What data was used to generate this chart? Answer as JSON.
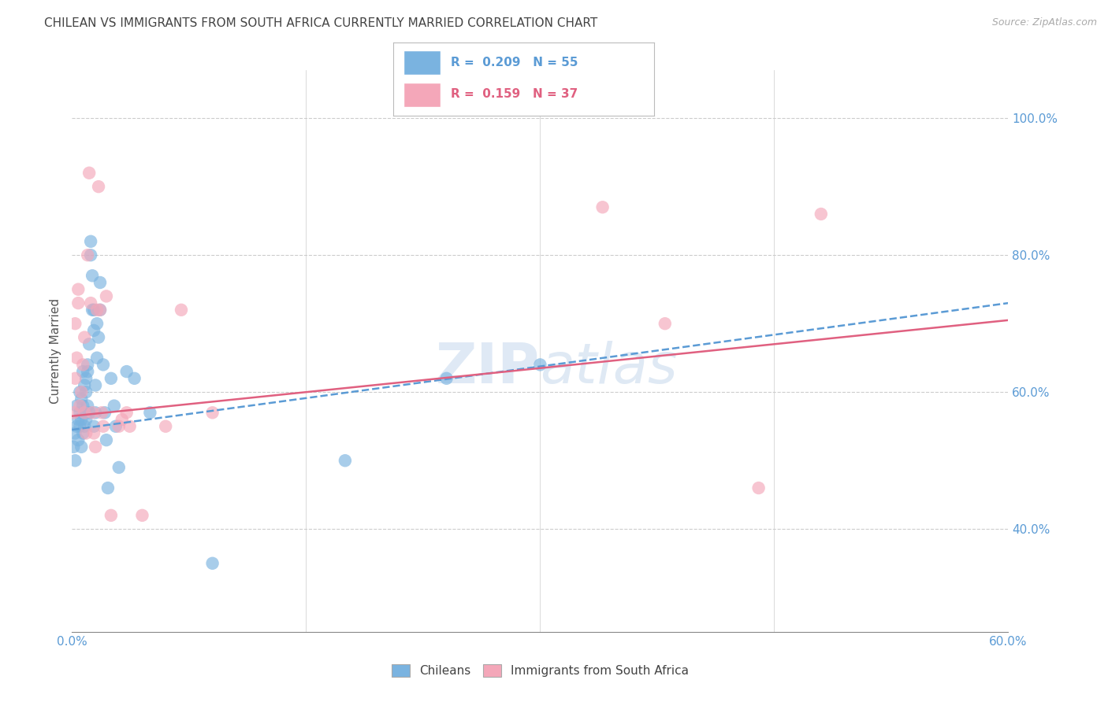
{
  "title": "CHILEAN VS IMMIGRANTS FROM SOUTH AFRICA CURRENTLY MARRIED CORRELATION CHART",
  "source": "Source: ZipAtlas.com",
  "ylabel": "Currently Married",
  "watermark": "ZIPAtlas",
  "chilean_color": "#7ab3e0",
  "immigrant_color": "#f4a7b9",
  "chilean_line_color": "#5b9bd5",
  "immigrant_line_color": "#e06080",
  "background_color": "#ffffff",
  "grid_color": "#cccccc",
  "axis_color": "#888888",
  "title_color": "#444444",
  "right_label_color": "#5b9bd5",
  "xlim": [
    0.0,
    0.6
  ],
  "ylim": [
    0.25,
    1.07
  ],
  "chilean_scatter": [
    [
      0.001,
      0.52
    ],
    [
      0.002,
      0.54
    ],
    [
      0.002,
      0.5
    ],
    [
      0.003,
      0.55
    ],
    [
      0.003,
      0.58
    ],
    [
      0.004,
      0.56
    ],
    [
      0.004,
      0.53
    ],
    [
      0.005,
      0.57
    ],
    [
      0.005,
      0.6
    ],
    [
      0.005,
      0.55
    ],
    [
      0.006,
      0.59
    ],
    [
      0.006,
      0.56
    ],
    [
      0.006,
      0.52
    ],
    [
      0.007,
      0.54
    ],
    [
      0.007,
      0.58
    ],
    [
      0.007,
      0.63
    ],
    [
      0.008,
      0.61
    ],
    [
      0.008,
      0.57
    ],
    [
      0.008,
      0.55
    ],
    [
      0.009,
      0.62
    ],
    [
      0.009,
      0.6
    ],
    [
      0.009,
      0.56
    ],
    [
      0.01,
      0.63
    ],
    [
      0.01,
      0.58
    ],
    [
      0.01,
      0.64
    ],
    [
      0.011,
      0.67
    ],
    [
      0.011,
      0.57
    ],
    [
      0.012,
      0.82
    ],
    [
      0.012,
      0.8
    ],
    [
      0.013,
      0.77
    ],
    [
      0.013,
      0.72
    ],
    [
      0.014,
      0.69
    ],
    [
      0.014,
      0.72
    ],
    [
      0.014,
      0.55
    ],
    [
      0.015,
      0.57
    ],
    [
      0.015,
      0.61
    ],
    [
      0.016,
      0.65
    ],
    [
      0.016,
      0.7
    ],
    [
      0.017,
      0.68
    ],
    [
      0.018,
      0.72
    ],
    [
      0.018,
      0.76
    ],
    [
      0.02,
      0.64
    ],
    [
      0.021,
      0.57
    ],
    [
      0.022,
      0.53
    ],
    [
      0.023,
      0.46
    ],
    [
      0.025,
      0.62
    ],
    [
      0.027,
      0.58
    ],
    [
      0.028,
      0.55
    ],
    [
      0.03,
      0.49
    ],
    [
      0.035,
      0.63
    ],
    [
      0.04,
      0.62
    ],
    [
      0.05,
      0.57
    ],
    [
      0.09,
      0.35
    ],
    [
      0.175,
      0.5
    ],
    [
      0.24,
      0.62
    ],
    [
      0.3,
      0.64
    ]
  ],
  "immigrant_scatter": [
    [
      0.001,
      0.57
    ],
    [
      0.002,
      0.7
    ],
    [
      0.002,
      0.62
    ],
    [
      0.003,
      0.65
    ],
    [
      0.004,
      0.73
    ],
    [
      0.004,
      0.75
    ],
    [
      0.005,
      0.58
    ],
    [
      0.006,
      0.6
    ],
    [
      0.007,
      0.64
    ],
    [
      0.008,
      0.68
    ],
    [
      0.008,
      0.57
    ],
    [
      0.009,
      0.54
    ],
    [
      0.01,
      0.8
    ],
    [
      0.011,
      0.92
    ],
    [
      0.012,
      0.73
    ],
    [
      0.013,
      0.57
    ],
    [
      0.014,
      0.54
    ],
    [
      0.015,
      0.52
    ],
    [
      0.016,
      0.72
    ],
    [
      0.017,
      0.9
    ],
    [
      0.018,
      0.72
    ],
    [
      0.019,
      0.57
    ],
    [
      0.02,
      0.55
    ],
    [
      0.022,
      0.74
    ],
    [
      0.025,
      0.42
    ],
    [
      0.03,
      0.55
    ],
    [
      0.032,
      0.56
    ],
    [
      0.035,
      0.57
    ],
    [
      0.037,
      0.55
    ],
    [
      0.045,
      0.42
    ],
    [
      0.06,
      0.55
    ],
    [
      0.07,
      0.72
    ],
    [
      0.09,
      0.57
    ],
    [
      0.34,
      0.87
    ],
    [
      0.38,
      0.7
    ],
    [
      0.44,
      0.46
    ],
    [
      0.48,
      0.86
    ]
  ],
  "chilean_trend": [
    0.0,
    0.6,
    0.545,
    0.73
  ],
  "immigrant_trend": [
    0.0,
    0.6,
    0.565,
    0.705
  ]
}
